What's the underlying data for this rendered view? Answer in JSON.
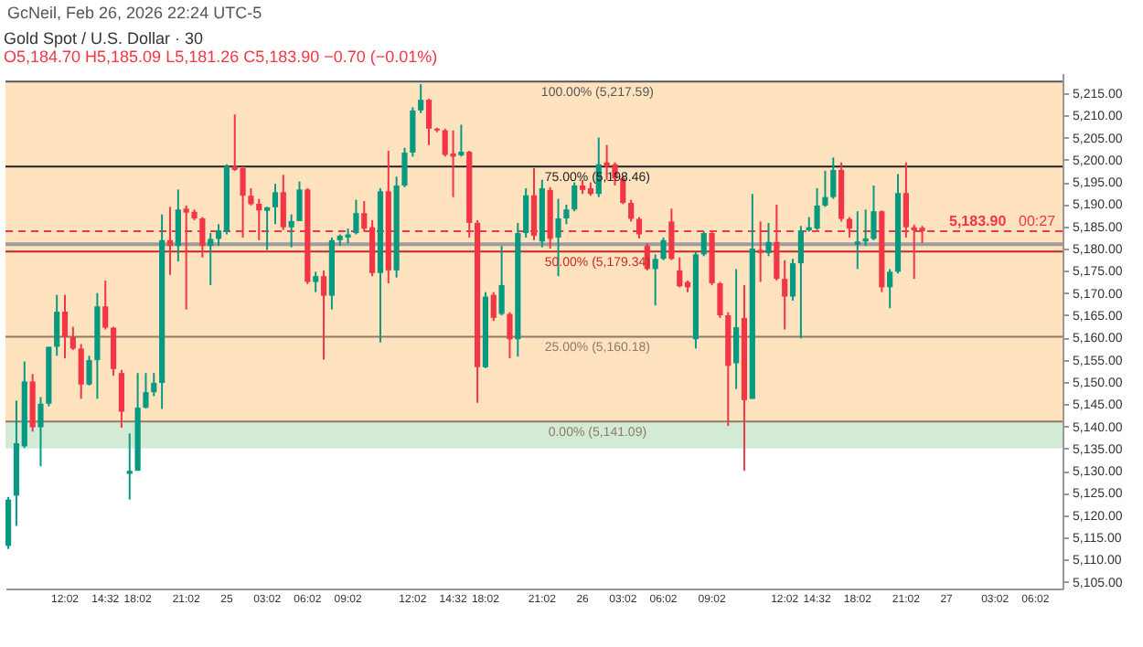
{
  "chart_data": {
    "type": "candlestick",
    "title": "Gold Spot / U.S. Dollar · 30",
    "subtitle": "O5,184.70 H5,185.09 L5,181.26 C5,183.90 −0.70 (−0.01%)",
    "annotations": [
      "GcNeil, Feb 26, 2026 22:24 UTC-5",
      "00:27"
    ],
    "categories": [
      null,
      null,
      null,
      null,
      null,
      null,
      null,
      "12:02",
      null,
      null,
      null,
      null,
      "14:32",
      null,
      null,
      null,
      "18:02",
      null,
      null,
      null,
      null,
      null,
      "21:02",
      null,
      null,
      null,
      null,
      "25",
      null,
      null,
      null,
      null,
      "03:02",
      null,
      null,
      null,
      null,
      "06:02",
      null,
      null,
      null,
      null,
      "09:02",
      null,
      null,
      null,
      null,
      null,
      null,
      null,
      "12:02",
      null,
      null,
      null,
      null,
      "14:32",
      null,
      null,
      null,
      "18:02",
      null,
      null,
      null,
      null,
      null,
      null,
      "21:02",
      null,
      null,
      null,
      null,
      "26",
      null,
      null,
      null,
      null,
      "03:02",
      null,
      null,
      null,
      null,
      "06:02",
      null,
      null,
      null,
      null,
      null,
      "09:02",
      null,
      null,
      null,
      null,
      null,
      null,
      null,
      null,
      "12:02",
      null,
      null,
      null,
      "14:32",
      null,
      null,
      null,
      null,
      "18:02",
      null,
      null,
      null,
      null,
      null,
      "21:02",
      null,
      null,
      null,
      null,
      "27",
      null,
      null,
      null,
      null,
      null,
      "03:02",
      null,
      null,
      null,
      null,
      "06:02",
      null,
      null,
      null
    ],
    "ohlc": [
      [
        5113.1,
        5124.1,
        5112.4,
        5123.5
      ],
      [
        5124.4,
        5145.8,
        5117.6,
        5136.2
      ],
      [
        5135.5,
        5154.6,
        5135.1,
        5150.1
      ],
      [
        5150.1,
        5151.8,
        5138.8,
        5139.8
      ],
      [
        5139.8,
        5146.6,
        5131.0,
        5145.1
      ],
      [
        5145.1,
        5157.9,
        5144.5,
        5157.9
      ],
      [
        5157.9,
        5169.6,
        5155.9,
        5165.8
      ],
      [
        5165.8,
        5169.6,
        5155.3,
        5160.1
      ],
      [
        5160.1,
        5162.4,
        5157.2,
        5157.5
      ],
      [
        5157.5,
        5158.5,
        5146.2,
        5149.4
      ],
      [
        5149.4,
        5155.9,
        5149.2,
        5154.9
      ],
      [
        5154.9,
        5170.0,
        5146.2,
        5167.0
      ],
      [
        5167.0,
        5172.8,
        5161.8,
        5162.2
      ],
      [
        5162.2,
        5162.4,
        5151.4,
        5152.9
      ],
      [
        5152.0,
        5152.7,
        5139.7,
        5143.3
      ],
      [
        5129.3,
        5138.4,
        5123.5,
        5130.0
      ],
      [
        5130.0,
        5152.0,
        5130.0,
        5144.2
      ],
      [
        5144.2,
        5152.0,
        5144.0,
        5147.7
      ],
      [
        5147.7,
        5152.0,
        5146.8,
        5149.8
      ],
      [
        5149.8,
        5187.7,
        5143.9,
        5181.9
      ],
      [
        5181.9,
        5189.4,
        5174.1,
        5180.6
      ],
      [
        5180.6,
        5193.3,
        5177.1,
        5188.8
      ],
      [
        5189.0,
        5189.7,
        5166.3,
        5188.1
      ],
      [
        5188.3,
        5188.8,
        5186.4,
        5186.8
      ],
      [
        5186.8,
        5187.1,
        5178.0,
        5180.6
      ],
      [
        5180.6,
        5183.5,
        5171.8,
        5182.2
      ],
      [
        5182.2,
        5185.5,
        5180.6,
        5184.1
      ],
      [
        5183.8,
        5199.0,
        5183.2,
        5198.5
      ],
      [
        5198.5,
        5210.2,
        5197.5,
        5197.7
      ],
      [
        5198.1,
        5198.5,
        5182.5,
        5191.9
      ],
      [
        5191.9,
        5193.6,
        5189.7,
        5190.0
      ],
      [
        5190.1,
        5191.2,
        5181.9,
        5188.6
      ],
      [
        5188.5,
        5189.4,
        5179.7,
        5189.3
      ],
      [
        5189.3,
        5194.6,
        5185.5,
        5192.7
      ],
      [
        5192.7,
        5196.6,
        5184.2,
        5184.8
      ],
      [
        5184.8,
        5187.7,
        5180.3,
        5186.2
      ],
      [
        5186.2,
        5195.1,
        5186.2,
        5193.3
      ],
      [
        5193.3,
        5193.6,
        5172.0,
        5172.5
      ],
      [
        5172.5,
        5174.8,
        5170.2,
        5173.8
      ],
      [
        5173.8,
        5175.1,
        5155.0,
        5169.4
      ],
      [
        5169.4,
        5182.5,
        5166.3,
        5181.9
      ],
      [
        5181.9,
        5183.2,
        5180.6,
        5182.9
      ],
      [
        5182.5,
        5184.5,
        5181.2,
        5183.2
      ],
      [
        5183.5,
        5191.0,
        5183.2,
        5188.0
      ],
      [
        5188.0,
        5190.7,
        5183.8,
        5184.5
      ],
      [
        5184.8,
        5186.4,
        5173.8,
        5174.5
      ],
      [
        5174.5,
        5193.6,
        5158.9,
        5192.9
      ],
      [
        5192.9,
        5202.0,
        5172.2,
        5175.1
      ],
      [
        5175.1,
        5196.2,
        5173.5,
        5194.2
      ],
      [
        5194.2,
        5202.7,
        5193.8,
        5201.6
      ],
      [
        5201.6,
        5211.8,
        5200.7,
        5211.1
      ],
      [
        5211.1,
        5217.0,
        5210.5,
        5213.5
      ],
      [
        5213.5,
        5213.7,
        5203.3,
        5207.0
      ],
      [
        5207.0,
        5207.2,
        5206.2,
        5206.6
      ],
      [
        5206.6,
        5207.0,
        5200.7,
        5201.1
      ],
      [
        5201.4,
        5206.6,
        5191.6,
        5200.7
      ],
      [
        5201.0,
        5207.9,
        5200.7,
        5201.8
      ],
      [
        5201.8,
        5202.0,
        5182.5,
        5185.8
      ],
      [
        5185.8,
        5186.4,
        5145.3,
        5153.3
      ],
      [
        5153.3,
        5170.2,
        5153.1,
        5169.2
      ],
      [
        5169.6,
        5170.2,
        5163.7,
        5164.4
      ],
      [
        5165.3,
        5180.6,
        5165.0,
        5171.8
      ],
      [
        5165.3,
        5165.7,
        5155.3,
        5159.6
      ],
      [
        5159.6,
        5185.8,
        5155.7,
        5183.5
      ],
      [
        5183.5,
        5193.6,
        5182.5,
        5192.0
      ],
      [
        5192.0,
        5198.1,
        5181.9,
        5182.9
      ],
      [
        5181.6,
        5195.5,
        5180.3,
        5193.6
      ],
      [
        5193.2,
        5193.8,
        5180.0,
        5182.2
      ],
      [
        5182.5,
        5191.2,
        5173.8,
        5186.8
      ],
      [
        5186.8,
        5189.9,
        5185.5,
        5188.8
      ],
      [
        5188.8,
        5194.9,
        5188.4,
        5194.2
      ],
      [
        5194.2,
        5195.5,
        5192.3,
        5193.2
      ],
      [
        5193.6,
        5194.9,
        5191.9,
        5192.3
      ],
      [
        5192.3,
        5205.0,
        5191.6,
        5199.0
      ],
      [
        5199.4,
        5203.3,
        5195.5,
        5198.5
      ],
      [
        5199.0,
        5199.4,
        5194.2,
        5195.8
      ],
      [
        5195.8,
        5196.2,
        5190.0,
        5190.3
      ],
      [
        5190.3,
        5191.0,
        5186.1,
        5186.7
      ],
      [
        5186.7,
        5187.1,
        5182.3,
        5183.2
      ],
      [
        5180.6,
        5181.2,
        5175.1,
        5175.4
      ],
      [
        5175.4,
        5178.7,
        5167.2,
        5177.7
      ],
      [
        5177.7,
        5182.5,
        5177.4,
        5181.9
      ],
      [
        5186.1,
        5189.0,
        5177.4,
        5177.7
      ],
      [
        5175.1,
        5178.0,
        5171.3,
        5171.5
      ],
      [
        5172.5,
        5172.8,
        5170.2,
        5171.3
      ],
      [
        5159.6,
        5179.3,
        5157.5,
        5178.7
      ],
      [
        5178.7,
        5183.8,
        5178.3,
        5183.5
      ],
      [
        5183.5,
        5183.8,
        5171.8,
        5172.2
      ],
      [
        5172.2,
        5172.5,
        5164.4,
        5165.0
      ],
      [
        5165.0,
        5165.7,
        5140.1,
        5153.6
      ],
      [
        5154.2,
        5175.4,
        5148.4,
        5162.3
      ],
      [
        5164.4,
        5171.8,
        5130.0,
        5145.9
      ],
      [
        5146.2,
        5192.3,
        5146.2,
        5180.0
      ],
      [
        5179.7,
        5186.1,
        5172.5,
        5179.0
      ],
      [
        5179.0,
        5185.8,
        5178.3,
        5181.5
      ],
      [
        5181.5,
        5189.9,
        5172.8,
        5173.2
      ],
      [
        5173.2,
        5177.4,
        5161.8,
        5169.2
      ],
      [
        5169.2,
        5177.7,
        5168.3,
        5176.7
      ],
      [
        5176.7,
        5185.1,
        5159.8,
        5184.1
      ],
      [
        5184.1,
        5187.1,
        5183.8,
        5184.8
      ],
      [
        5184.5,
        5193.6,
        5184.2,
        5189.7
      ],
      [
        5189.7,
        5197.5,
        5189.4,
        5191.6
      ],
      [
        5191.6,
        5200.5,
        5191.2,
        5197.7
      ],
      [
        5197.7,
        5199.4,
        5186.1,
        5186.7
      ],
      [
        5186.7,
        5187.1,
        5182.5,
        5184.5
      ],
      [
        5180.9,
        5188.4,
        5175.4,
        5181.6
      ],
      [
        5181.6,
        5188.8,
        5180.6,
        5182.3
      ],
      [
        5182.2,
        5194.2,
        5181.9,
        5188.4
      ],
      [
        5188.4,
        5188.6,
        5170.2,
        5171.3
      ],
      [
        5171.3,
        5175.4,
        5166.6,
        5174.8
      ],
      [
        5174.8,
        5196.8,
        5174.4,
        5192.5
      ],
      [
        5192.5,
        5199.4,
        5182.5,
        5184.8
      ],
      [
        5184.8,
        5185.4,
        5173.2,
        5184.1
      ],
      [
        5184.7,
        5185.09,
        5181.26,
        5183.9
      ],
      null,
      null,
      null,
      null,
      null,
      null,
      null,
      null,
      null,
      null,
      null,
      null,
      null,
      null,
      null,
      null,
      null
    ],
    "colors": [
      "#089981",
      "#089981",
      "#089981",
      "#f23645",
      "#089981",
      "#089981",
      "#089981",
      "#f23645",
      "#f23645",
      "#f23645",
      "#089981",
      "#089981",
      "#f23645",
      "#f23645",
      "#f23645",
      "#089981",
      "#089981",
      "#089981",
      "#089981",
      "#089981",
      "#f23645",
      "#089981",
      "#f23645",
      "#f23645",
      "#f23645",
      "#089981",
      "#089981",
      "#089981",
      "#f23645",
      "#f23645",
      "#f23645",
      "#f23645",
      "#089981",
      "#089981",
      "#f23645",
      "#089981",
      "#089981",
      "#f23645",
      "#089981",
      "#f23645",
      "#089981",
      "#089981",
      "#089981",
      "#089981",
      "#f23645",
      "#f23645",
      "#089981",
      "#f23645",
      "#089981",
      "#089981",
      "#089981",
      "#089981",
      "#f23645",
      "#f23645",
      "#f23645",
      "#f23645",
      "#089981",
      "#f23645",
      "#f23645",
      "#089981",
      "#f23645",
      "#089981",
      "#f23645",
      "#089981",
      "#089981",
      "#f23645",
      "#089981",
      "#f23645",
      "#089981",
      "#089981",
      "#089981",
      "#f23645",
      "#f23645",
      "#089981",
      "#f23645",
      "#f23645",
      "#f23645",
      "#f23645",
      "#f23645",
      "#f23645",
      "#089981",
      "#089981",
      "#f23645",
      "#f23645",
      "#f23645",
      "#089981",
      "#089981",
      "#f23645",
      "#f23645",
      "#f23645",
      "#089981",
      "#f23645",
      "#089981",
      "#f23645",
      "#089981",
      "#f23645",
      "#f23645",
      "#089981",
      "#089981",
      "#089981",
      "#089981",
      "#089981",
      "#089981",
      "#f23645",
      "#f23645",
      "#089981",
      "#089981",
      "#089981",
      "#f23645",
      "#089981",
      "#089981",
      "#f23645",
      "#f23645",
      "#f23645",
      null,
      null,
      null,
      null,
      null,
      null,
      null,
      null,
      null,
      null,
      null,
      null,
      null,
      null,
      null,
      null,
      null
    ],
    "ylim": [
      5103.5,
      5219.5
    ],
    "yticks": [
      {
        "value": 5105,
        "label": "5,105.00"
      },
      {
        "value": 5110,
        "label": "5,110.00"
      },
      {
        "value": 5115,
        "label": "5,115.00"
      },
      {
        "value": 5120,
        "label": "5,120.00"
      },
      {
        "value": 5125,
        "label": "5,125.00"
      },
      {
        "value": 5130,
        "label": "5,130.00"
      },
      {
        "value": 5135,
        "label": "5,135.00"
      },
      {
        "value": 5140,
        "label": "5,140.00"
      },
      {
        "value": 5145,
        "label": "5,145.00"
      },
      {
        "value": 5150,
        "label": "5,150.00"
      },
      {
        "value": 5155,
        "label": "5,155.00"
      },
      {
        "value": 5160,
        "label": "5,160.00"
      },
      {
        "value": 5165,
        "label": "5,165.00"
      },
      {
        "value": 5170,
        "label": "5,170.00"
      },
      {
        "value": 5175,
        "label": "5,175.00"
      },
      {
        "value": 5180,
        "label": "5,180.00"
      },
      {
        "value": 5185,
        "label": "5,185.00"
      },
      {
        "value": 5190,
        "label": "5,190.00"
      },
      {
        "value": 5195,
        "label": "5,195.00"
      },
      {
        "value": 5200,
        "label": "5,200.00"
      },
      {
        "value": 5205,
        "label": "5,205.00"
      },
      {
        "value": 5210,
        "label": "5,210.00"
      },
      {
        "value": 5215,
        "label": "5,215.00"
      }
    ],
    "bands": [
      {
        "axis": "y",
        "from": 5141.09,
        "to": 5217.59,
        "color": "#ffe3bf"
      },
      {
        "axis": "y",
        "from": 5135,
        "to": 5141.09,
        "color": "#d3ebd4"
      }
    ],
    "ref_lines": [
      {
        "axis": "y",
        "value": 5217.59,
        "label": "100.00% (5,217.59)",
        "color": "#555555"
      },
      {
        "axis": "y",
        "value": 5198.46,
        "label": "75.00% (5,198.46)",
        "color": "#222222"
      },
      {
        "axis": "y",
        "value": 5181,
        "color": "#9e9e9e"
      },
      {
        "axis": "y",
        "value": 5179.34,
        "label": "50.00% (5,179.34)",
        "color": "#c62828"
      },
      {
        "axis": "y",
        "value": 5160.18,
        "label": "25.00% (5,160.18)",
        "color": "#8d7b68"
      },
      {
        "axis": "y",
        "value": 5141.09,
        "label": "0.00% (5,141.09)",
        "color": "#8d7b68"
      },
      {
        "axis": "y",
        "value": 5183.9,
        "label": "5,183.90",
        "color": "#f23645",
        "line_style": "dashed"
      }
    ]
  }
}
